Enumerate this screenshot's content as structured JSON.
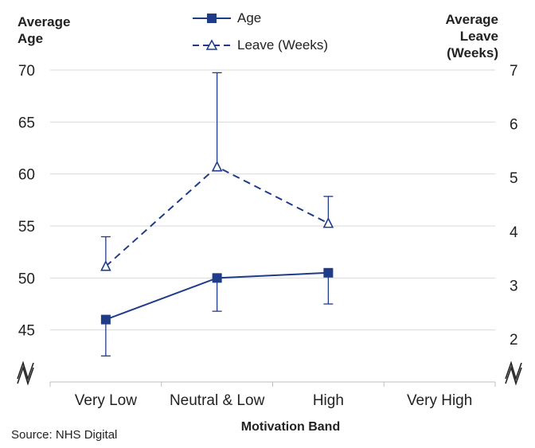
{
  "chart_data": {
    "type": "line",
    "categories": [
      "Very Low",
      "Neutral & Low",
      "High",
      "Very High"
    ],
    "xlabel": "Motivation Band",
    "y_left": {
      "label_lines": [
        "Average",
        "Age"
      ],
      "ylim": [
        40,
        70
      ],
      "ticks": [
        "45",
        "50",
        "55",
        "60",
        "65",
        "70"
      ],
      "axis_break": true
    },
    "y_right": {
      "label_lines": [
        "Average",
        "Leave",
        "(Weeks)"
      ],
      "ylim": [
        1.2,
        7
      ],
      "ticks": [
        "2",
        "3",
        "4",
        "5",
        "6",
        "7"
      ],
      "axis_break": true
    },
    "series": [
      {
        "name": "Age",
        "axis": "left",
        "style": "solid",
        "marker": "filled-square",
        "color": "#1f3c88",
        "values": [
          46.0,
          50.0,
          50.5,
          null
        ],
        "error_low": [
          42.5,
          46.8,
          47.5,
          null
        ],
        "error_high": [
          46.0,
          50.0,
          50.5,
          null
        ]
      },
      {
        "name": "Leave (Weeks)",
        "axis": "right",
        "style": "dashed",
        "marker": "open-triangle",
        "color": "#1f3c88",
        "values": [
          3.35,
          5.2,
          4.15,
          null
        ],
        "error_low": [
          3.35,
          5.2,
          4.15,
          null
        ],
        "error_high": [
          3.9,
          6.95,
          4.65,
          null
        ]
      }
    ],
    "gridlines": "horizontal",
    "legend_position": "top-center"
  },
  "source": "Source: NHS Digital"
}
